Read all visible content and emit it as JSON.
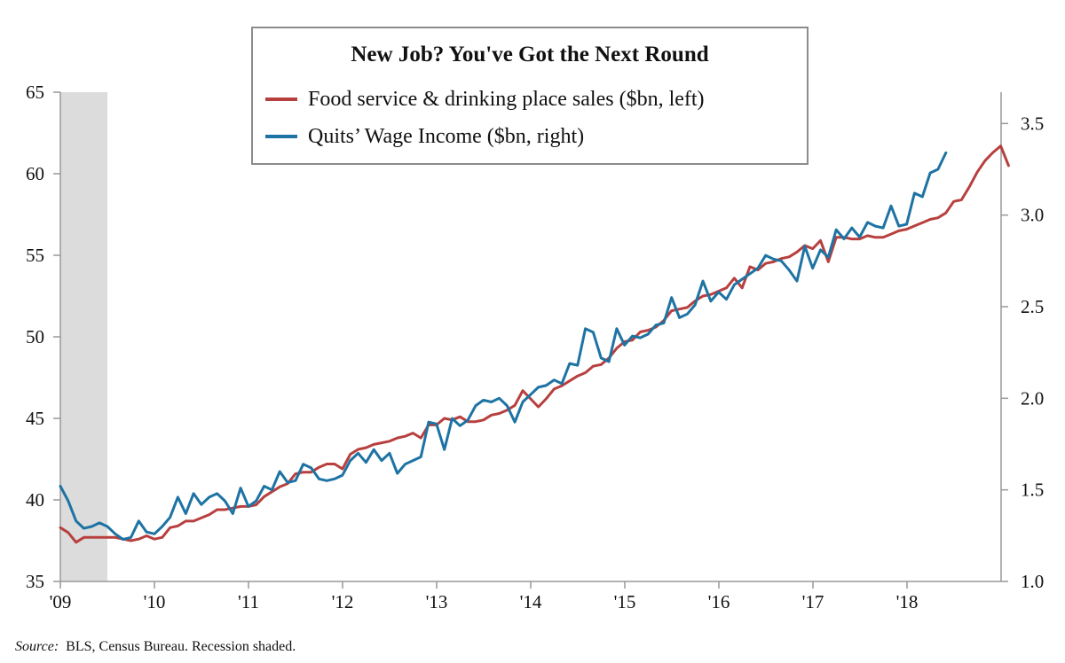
{
  "chart_data": {
    "type": "line",
    "title": "New Job? You've Got the Next Round",
    "x_tick_labels": [
      "'09",
      "'10",
      "'11",
      "'12",
      "'13",
      "'14",
      "'15",
      "'16",
      "'17",
      "'18"
    ],
    "x_range": [
      2009.0,
      2019.0
    ],
    "recession_shading": [
      2009.0,
      2009.5
    ],
    "left_axis": {
      "ticks": [
        35,
        40,
        45,
        50,
        55,
        60,
        65
      ],
      "ylim": [
        35,
        65
      ]
    },
    "right_axis": {
      "ticks": [
        "1.0",
        "1.5",
        "2.0",
        "2.5",
        "3.0",
        "3.5"
      ],
      "ylim": [
        1.0,
        3.7
      ]
    },
    "series": [
      {
        "name": "Food service & drinking place sales ($bn, left)",
        "axis": "left",
        "color": "#b7403f",
        "start": 2009.0,
        "step": 0.0833,
        "values": [
          38.3,
          38.0,
          37.4,
          37.7,
          37.7,
          37.7,
          37.7,
          37.7,
          37.6,
          37.5,
          37.6,
          37.8,
          37.6,
          37.7,
          38.3,
          38.4,
          38.7,
          38.7,
          38.9,
          39.1,
          39.4,
          39.4,
          39.5,
          39.6,
          39.6,
          39.7,
          40.2,
          40.5,
          40.8,
          41.0,
          41.6,
          41.7,
          41.7,
          42.0,
          42.2,
          42.2,
          41.9,
          42.8,
          43.1,
          43.2,
          43.4,
          43.5,
          43.6,
          43.8,
          43.9,
          44.1,
          43.8,
          44.6,
          44.6,
          45.0,
          44.9,
          45.1,
          44.8,
          44.8,
          44.9,
          45.2,
          45.3,
          45.5,
          45.8,
          46.7,
          46.2,
          45.7,
          46.2,
          46.8,
          47.0,
          47.3,
          47.6,
          47.8,
          48.2,
          48.3,
          48.7,
          49.3,
          49.7,
          49.8,
          50.3,
          50.4,
          50.6,
          51.0,
          51.6,
          51.7,
          51.8,
          52.2,
          52.5,
          52.6,
          52.8,
          53.0,
          53.6,
          53.0,
          54.3,
          54.1,
          54.5,
          54.6,
          54.8,
          54.9,
          55.2,
          55.6,
          55.4,
          55.9,
          54.6,
          56.1,
          56.1,
          56.0,
          56.0,
          56.2,
          56.1,
          56.1,
          56.3,
          56.5,
          56.6,
          56.8,
          57.0,
          57.2,
          57.3,
          57.6,
          58.3,
          58.4,
          59.2,
          60.1,
          60.8,
          61.3,
          61.7,
          60.5
        ]
      },
      {
        "name": "Quits’ Wage Income ($bn, right)",
        "axis": "right",
        "color": "#1d73a3",
        "start": 2009.0,
        "step": 0.0833,
        "values": [
          1.52,
          1.44,
          1.33,
          1.29,
          1.3,
          1.32,
          1.3,
          1.26,
          1.23,
          1.24,
          1.33,
          1.27,
          1.26,
          1.3,
          1.35,
          1.46,
          1.37,
          1.48,
          1.42,
          1.46,
          1.48,
          1.44,
          1.37,
          1.51,
          1.41,
          1.44,
          1.52,
          1.5,
          1.6,
          1.54,
          1.55,
          1.64,
          1.62,
          1.56,
          1.55,
          1.56,
          1.58,
          1.66,
          1.7,
          1.65,
          1.72,
          1.66,
          1.7,
          1.59,
          1.64,
          1.66,
          1.68,
          1.87,
          1.86,
          1.72,
          1.89,
          1.85,
          1.88,
          1.96,
          1.99,
          1.98,
          2.0,
          1.96,
          1.87,
          1.98,
          2.02,
          2.06,
          2.07,
          2.1,
          2.08,
          2.19,
          2.18,
          2.38,
          2.36,
          2.22,
          2.2,
          2.38,
          2.29,
          2.34,
          2.33,
          2.35,
          2.4,
          2.41,
          2.55,
          2.44,
          2.46,
          2.51,
          2.64,
          2.53,
          2.58,
          2.54,
          2.62,
          2.65,
          2.68,
          2.71,
          2.78,
          2.76,
          2.75,
          2.7,
          2.64,
          2.83,
          2.71,
          2.81,
          2.77,
          2.92,
          2.87,
          2.93,
          2.88,
          2.96,
          2.94,
          2.93,
          3.05,
          2.94,
          2.95,
          3.12,
          3.1,
          3.23,
          3.25,
          3.34
        ]
      }
    ]
  },
  "legend": {
    "title": "New Job? You've Got the Next Round",
    "items": [
      {
        "label": "Food service & drinking place sales ($bn, left)",
        "color": "#b7403f"
      },
      {
        "label": "Quits’ Wage Income ($bn, right)",
        "color": "#1d73a3"
      }
    ]
  },
  "source": {
    "label": "Source:",
    "text": "BLS, Census Bureau. Recession shaded."
  }
}
